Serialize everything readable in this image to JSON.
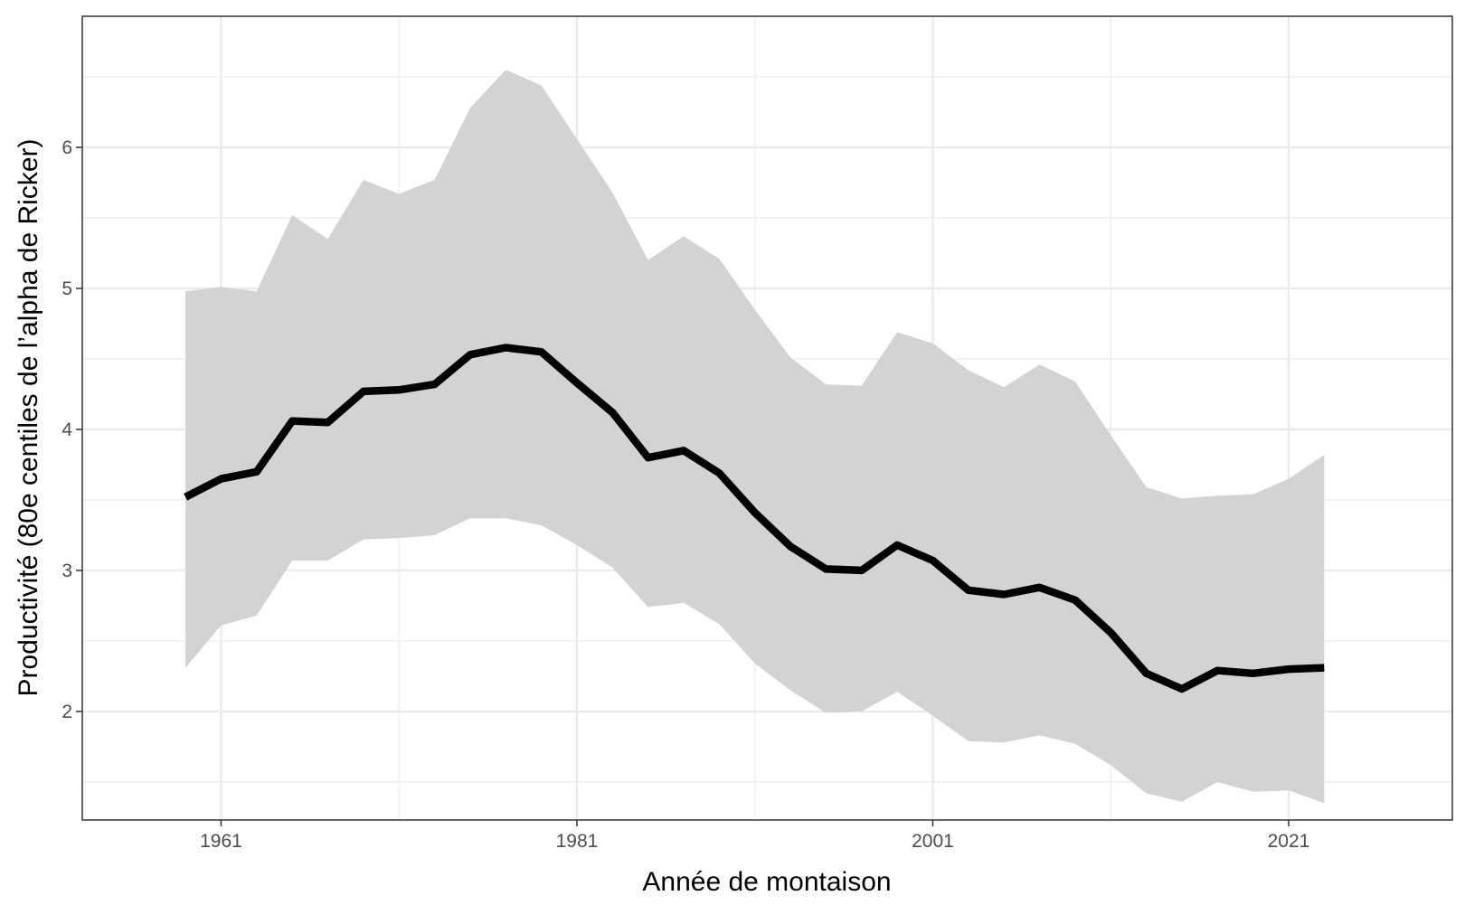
{
  "chart_data": {
    "type": "area",
    "title": "",
    "xlabel": "Année de montaison",
    "ylabel": "Productivité (80e centiles de l’alpha de Ricker)",
    "xlim": [
      1953.2,
      2030.2
    ],
    "ylim": [
      1.23,
      6.93
    ],
    "x_ticks": [
      1961,
      1981,
      2001,
      2021
    ],
    "x_tick_labels": [
      "1961",
      "1981",
      "2001",
      "2021"
    ],
    "x_minor_ticks": [
      1971,
      1991,
      2011
    ],
    "y_ticks": [
      2,
      3,
      4,
      5,
      6
    ],
    "y_tick_labels": [
      "2",
      "3",
      "4",
      "5",
      "6"
    ],
    "y_minor_ticks": [
      1.5,
      2.5,
      3.5,
      4.5,
      5.5,
      6.5
    ],
    "grid": true,
    "legend": "none",
    "colors": {
      "line": "#000000",
      "ribbon": "#d3d3d3",
      "grid": "#ebebeb",
      "panel_border": "#333333"
    },
    "x": [
      1959,
      1961,
      1963,
      1965,
      1967,
      1969,
      1971,
      1973,
      1975,
      1977,
      1979,
      1981,
      1983,
      1985,
      1987,
      1989,
      1991,
      1993,
      1995,
      1997,
      1999,
      2001,
      2003,
      2005,
      2007,
      2009,
      2011,
      2013,
      2015,
      2017,
      2019,
      2021,
      2023
    ],
    "series": [
      {
        "values": [
          3.52,
          3.65,
          3.7,
          4.06,
          4.05,
          4.27,
          4.28,
          4.32,
          4.53,
          4.58,
          4.55,
          4.33,
          4.12,
          3.8,
          3.85,
          3.69,
          3.41,
          3.17,
          3.01,
          3.0,
          3.18,
          3.07,
          2.86,
          2.83,
          2.88,
          2.79,
          2.56,
          2.27,
          2.16,
          2.29,
          2.27,
          2.3,
          2.31
        ],
        "lower": [
          2.31,
          2.61,
          2.68,
          3.07,
          3.07,
          3.22,
          3.23,
          3.25,
          3.37,
          3.37,
          3.32,
          3.18,
          3.02,
          2.74,
          2.77,
          2.62,
          2.34,
          2.15,
          1.99,
          2.0,
          2.14,
          1.97,
          1.79,
          1.78,
          1.83,
          1.77,
          1.62,
          1.42,
          1.36,
          1.5,
          1.43,
          1.44,
          1.35
        ],
        "upper": [
          4.98,
          5.01,
          4.98,
          5.52,
          5.35,
          5.77,
          5.67,
          5.77,
          6.28,
          6.55,
          6.44,
          6.06,
          5.68,
          5.2,
          5.37,
          5.21,
          4.85,
          4.51,
          4.32,
          4.31,
          4.69,
          4.61,
          4.42,
          4.3,
          4.46,
          4.34,
          3.96,
          3.59,
          3.51,
          3.53,
          3.54,
          3.65,
          3.82
        ]
      }
    ]
  }
}
